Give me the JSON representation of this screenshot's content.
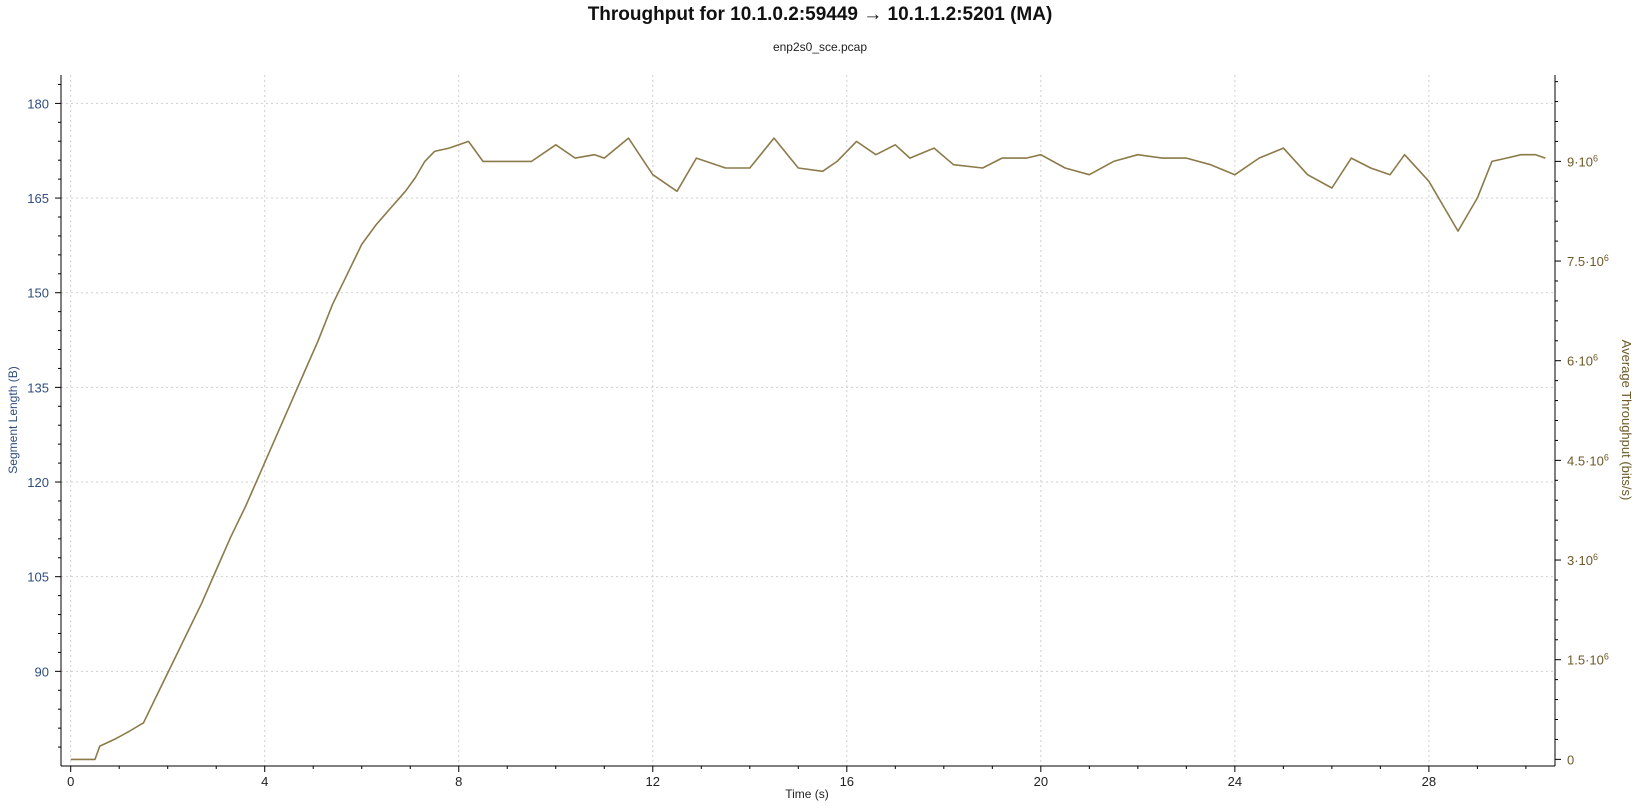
{
  "chart_data": {
    "type": "line",
    "title": "Throughput for 10.1.0.2:59449 → 10.1.1.2:5201 (MA)",
    "subtitle": "enp2s0_sce.pcap",
    "xlabel": "Time (s)",
    "ylabel_left": "Segment Length (B)",
    "ylabel_right": "Average Throughput (bits/s)",
    "xlim": [
      -0.2,
      30.6
    ],
    "ylim_left": [
      75,
      184.5
    ],
    "ylim_right": [
      -100000,
      10300000
    ],
    "x_ticks": [
      0,
      4,
      8,
      12,
      16,
      20,
      24,
      28
    ],
    "y_left_ticks": [
      90,
      105,
      120,
      135,
      150,
      165,
      180
    ],
    "y_right_ticks": [
      {
        "value": 0,
        "mant": "0",
        "exp": ""
      },
      {
        "value": 1500000,
        "mant": "1.5·10",
        "exp": "6"
      },
      {
        "value": 3000000,
        "mant": "3·10",
        "exp": "6"
      },
      {
        "value": 4500000,
        "mant": "4.5·10",
        "exp": "6"
      },
      {
        "value": 6000000,
        "mant": "6·10",
        "exp": "6"
      },
      {
        "value": 7500000,
        "mant": "7.5·10",
        "exp": "6"
      },
      {
        "value": 9000000,
        "mant": "9·10",
        "exp": "6"
      }
    ],
    "grid": true,
    "series": [
      {
        "color": "#8c7a4a",
        "axis": "right",
        "x": [
          0,
          0.5,
          0.6,
          0.9,
          1.2,
          1.5,
          1.8,
          2.1,
          2.4,
          2.7,
          3.0,
          3.3,
          3.6,
          3.9,
          4.2,
          4.5,
          4.8,
          5.1,
          5.4,
          5.7,
          6.0,
          6.3,
          6.6,
          6.9,
          7.1,
          7.3,
          7.5,
          7.8,
          8.2,
          8.5,
          9.0,
          9.5,
          10.0,
          10.4,
          10.8,
          11.0,
          11.5,
          12.0,
          12.5,
          12.9,
          13.5,
          14.0,
          14.5,
          15.0,
          15.5,
          15.8,
          16.2,
          16.6,
          17.0,
          17.3,
          17.8,
          18.2,
          18.8,
          19.2,
          19.7,
          20.0,
          20.5,
          21.0,
          21.5,
          22.0,
          22.5,
          23.0,
          23.5,
          24.0,
          24.5,
          25.0,
          25.5,
          26.0,
          26.4,
          26.8,
          27.2,
          27.5,
          28.0,
          28.6,
          29.0,
          29.3,
          29.6,
          29.9,
          30.2,
          30.4
        ],
        "y": [
          0,
          0,
          200000,
          300000,
          420000,
          550000,
          1000000,
          1450000,
          1900000,
          2350000,
          2850000,
          3350000,
          3800000,
          4300000,
          4800000,
          5300000,
          5800000,
          6300000,
          6850000,
          7300000,
          7750000,
          8050000,
          8300000,
          8550000,
          8750000,
          9000000,
          9150000,
          9200000,
          9300000,
          9000000,
          9000000,
          9000000,
          9250000,
          9050000,
          9100000,
          9050000,
          9350000,
          8800000,
          8550000,
          9050000,
          8900000,
          8900000,
          9350000,
          8900000,
          8850000,
          9000000,
          9300000,
          9100000,
          9250000,
          9050000,
          9200000,
          8950000,
          8900000,
          9050000,
          9050000,
          9100000,
          8900000,
          8800000,
          9000000,
          9100000,
          9050000,
          9050000,
          8950000,
          8800000,
          9050000,
          9200000,
          8800000,
          8600000,
          9050000,
          8900000,
          8800000,
          9100000,
          8700000,
          7950000,
          8450000,
          9000000,
          9050000,
          9100000,
          9100000,
          9050000
        ]
      }
    ]
  }
}
